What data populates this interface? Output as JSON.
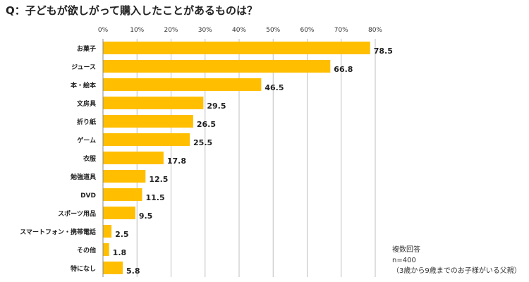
{
  "chart_data": {
    "type": "bar",
    "orientation": "horizontal",
    "title": "Q：子どもが欲しがって購入したことがあるものは？",
    "categories": [
      "お菓子",
      "ジュース",
      "本・絵本",
      "文房具",
      "折り紙",
      "ゲーム",
      "衣服",
      "勉強道具",
      "DVD",
      "スポーツ用品",
      "スマートフォン・携帯電話",
      "その他",
      "特になし"
    ],
    "values": [
      78.5,
      66.8,
      46.5,
      29.5,
      26.5,
      25.5,
      17.8,
      12.5,
      11.5,
      9.5,
      2.5,
      1.8,
      5.8
    ],
    "value_labels": [
      "78.5",
      "66.8",
      "46.5",
      "29.5",
      "26.5",
      "25.5",
      "17.8",
      "12.5",
      "11.5",
      "9.5",
      "2.5",
      "1.8",
      "5.8"
    ],
    "xlim": [
      0,
      80
    ],
    "ticks": [
      "0%",
      "10%",
      "20%",
      "30%",
      "40%",
      "50%",
      "60%",
      "70%",
      "80%"
    ],
    "tick_values": [
      0,
      10,
      20,
      30,
      40,
      50,
      60,
      70,
      80
    ],
    "xlabel": "",
    "ylabel": "",
    "grid": true,
    "bar_color": "#FFBF00",
    "grid_color": "#BFBFBF"
  },
  "notes": [
    "複数回答",
    "n=400",
    "（3歳から9歳までのお子様がいる父親）"
  ]
}
